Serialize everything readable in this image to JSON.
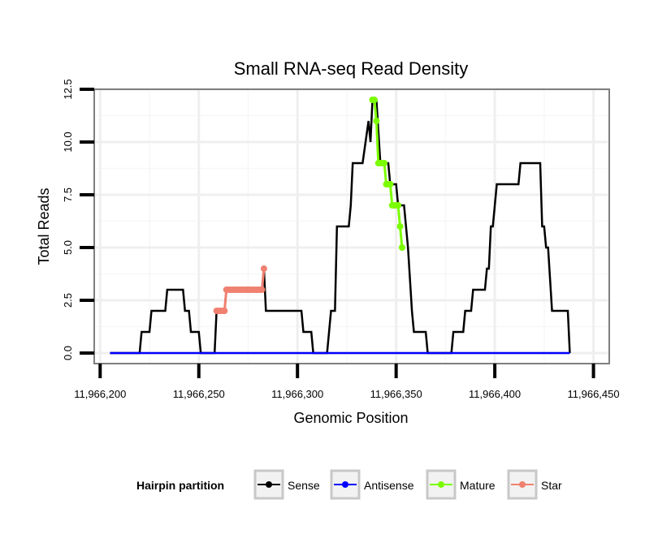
{
  "chart_data": {
    "type": "line",
    "title": "Small RNA-seq Read Density",
    "xlabel": "Genomic Position",
    "ylabel": "Total Reads",
    "xlim": [
      11966197,
      11966458
    ],
    "ylim": [
      -0.5,
      12.5
    ],
    "x_ticks": [
      11966200,
      11966250,
      11966300,
      11966350,
      11966400,
      11966450
    ],
    "x_tick_labels": [
      "11,966,200",
      "11,966,250",
      "11,966,300",
      "11,966,350",
      "11,966,400",
      "11,966,450"
    ],
    "y_ticks": [
      0,
      2.5,
      5,
      7.5,
      10,
      12.5
    ],
    "y_tick_labels": [
      "0.0",
      "2.5",
      "5.0",
      "7.5",
      "10.0",
      "12.5"
    ],
    "grid": true,
    "legend": {
      "title": "Hairpin partition",
      "position": "bottom",
      "entries": [
        {
          "label": "Sense",
          "color": "#000000"
        },
        {
          "label": "Antisense",
          "color": "#0000ff"
        },
        {
          "label": "Mature",
          "color": "#7cfc00"
        },
        {
          "label": "Star",
          "color": "#f08070"
        }
      ]
    },
    "series": [
      {
        "name": "Sense",
        "color": "#000000",
        "points": [
          [
            11966205,
            0
          ],
          [
            11966220,
            0
          ],
          [
            11966221,
            1
          ],
          [
            11966225,
            1
          ],
          [
            11966226,
            2
          ],
          [
            11966230,
            2
          ],
          [
            11966233,
            2
          ],
          [
            11966234,
            3
          ],
          [
            11966242,
            3
          ],
          [
            11966243,
            2
          ],
          [
            11966245,
            2
          ],
          [
            11966246,
            1
          ],
          [
            11966250,
            1
          ],
          [
            11966251,
            0
          ],
          [
            11966258,
            0
          ],
          [
            11966259,
            2
          ],
          [
            11966263,
            2
          ],
          [
            11966264,
            3
          ],
          [
            11966282,
            3
          ],
          [
            11966283,
            4
          ],
          [
            11966284,
            2
          ],
          [
            11966300,
            2
          ],
          [
            11966302,
            2
          ],
          [
            11966303,
            1
          ],
          [
            11966307,
            1
          ],
          [
            11966308,
            0
          ],
          [
            11966315,
            0
          ],
          [
            11966316,
            1
          ],
          [
            11966317,
            2
          ],
          [
            11966319,
            2
          ],
          [
            11966320,
            6
          ],
          [
            11966326,
            6
          ],
          [
            11966327,
            7
          ],
          [
            11966328,
            9
          ],
          [
            11966333,
            9
          ],
          [
            11966336,
            11
          ],
          [
            11966337,
            10
          ],
          [
            11966338,
            12
          ],
          [
            11966340,
            12
          ],
          [
            11966342,
            9
          ],
          [
            11966346,
            9
          ],
          [
            11966347,
            8
          ],
          [
            11966350,
            8
          ],
          [
            11966351,
            7
          ],
          [
            11966354,
            7
          ],
          [
            11966355,
            6
          ],
          [
            11966356,
            5
          ],
          [
            11966358,
            2
          ],
          [
            11966359,
            1
          ],
          [
            11966365,
            1
          ],
          [
            11966366,
            0
          ],
          [
            11966378,
            0
          ],
          [
            11966379,
            1
          ],
          [
            11966384,
            1
          ],
          [
            11966385,
            2
          ],
          [
            11966388,
            2
          ],
          [
            11966389,
            3
          ],
          [
            11966395,
            3
          ],
          [
            11966396,
            4
          ],
          [
            11966397,
            4
          ],
          [
            11966398,
            6
          ],
          [
            11966399,
            6
          ],
          [
            11966400,
            7
          ],
          [
            11966401,
            8
          ],
          [
            11966412,
            8
          ],
          [
            11966413,
            9
          ],
          [
            11966423,
            9
          ],
          [
            11966424,
            6
          ],
          [
            11966425,
            6
          ],
          [
            11966426,
            5
          ],
          [
            11966427,
            5
          ],
          [
            11966429,
            2
          ],
          [
            11966436,
            2
          ],
          [
            11966437,
            2
          ],
          [
            11966438,
            0
          ]
        ]
      },
      {
        "name": "Antisense",
        "color": "#0000ff",
        "points": [
          [
            11966205,
            0
          ],
          [
            11966438,
            0
          ]
        ]
      },
      {
        "name": "Mature",
        "color": "#7cfc00",
        "points": [
          [
            11966338,
            12
          ],
          [
            11966339,
            12
          ],
          [
            11966340,
            11
          ],
          [
            11966341,
            9
          ],
          [
            11966342,
            9
          ],
          [
            11966343,
            9
          ],
          [
            11966344,
            9
          ],
          [
            11966345,
            8
          ],
          [
            11966346,
            8
          ],
          [
            11966347,
            8
          ],
          [
            11966348,
            7
          ],
          [
            11966349,
            7
          ],
          [
            11966350,
            7
          ],
          [
            11966351,
            7
          ],
          [
            11966352,
            6
          ],
          [
            11966353,
            5
          ]
        ]
      },
      {
        "name": "Star",
        "color": "#f08070",
        "points": [
          [
            11966259,
            2
          ],
          [
            11966260,
            2
          ],
          [
            11966261,
            2
          ],
          [
            11966262,
            2
          ],
          [
            11966263,
            2
          ],
          [
            11966264,
            3
          ],
          [
            11966265,
            3
          ],
          [
            11966266,
            3
          ],
          [
            11966267,
            3
          ],
          [
            11966268,
            3
          ],
          [
            11966269,
            3
          ],
          [
            11966270,
            3
          ],
          [
            11966271,
            3
          ],
          [
            11966272,
            3
          ],
          [
            11966273,
            3
          ],
          [
            11966274,
            3
          ],
          [
            11966275,
            3
          ],
          [
            11966276,
            3
          ],
          [
            11966277,
            3
          ],
          [
            11966278,
            3
          ],
          [
            11966279,
            3
          ],
          [
            11966280,
            3
          ],
          [
            11966281,
            3
          ],
          [
            11966282,
            3
          ],
          [
            11966283,
            4
          ]
        ]
      }
    ]
  }
}
